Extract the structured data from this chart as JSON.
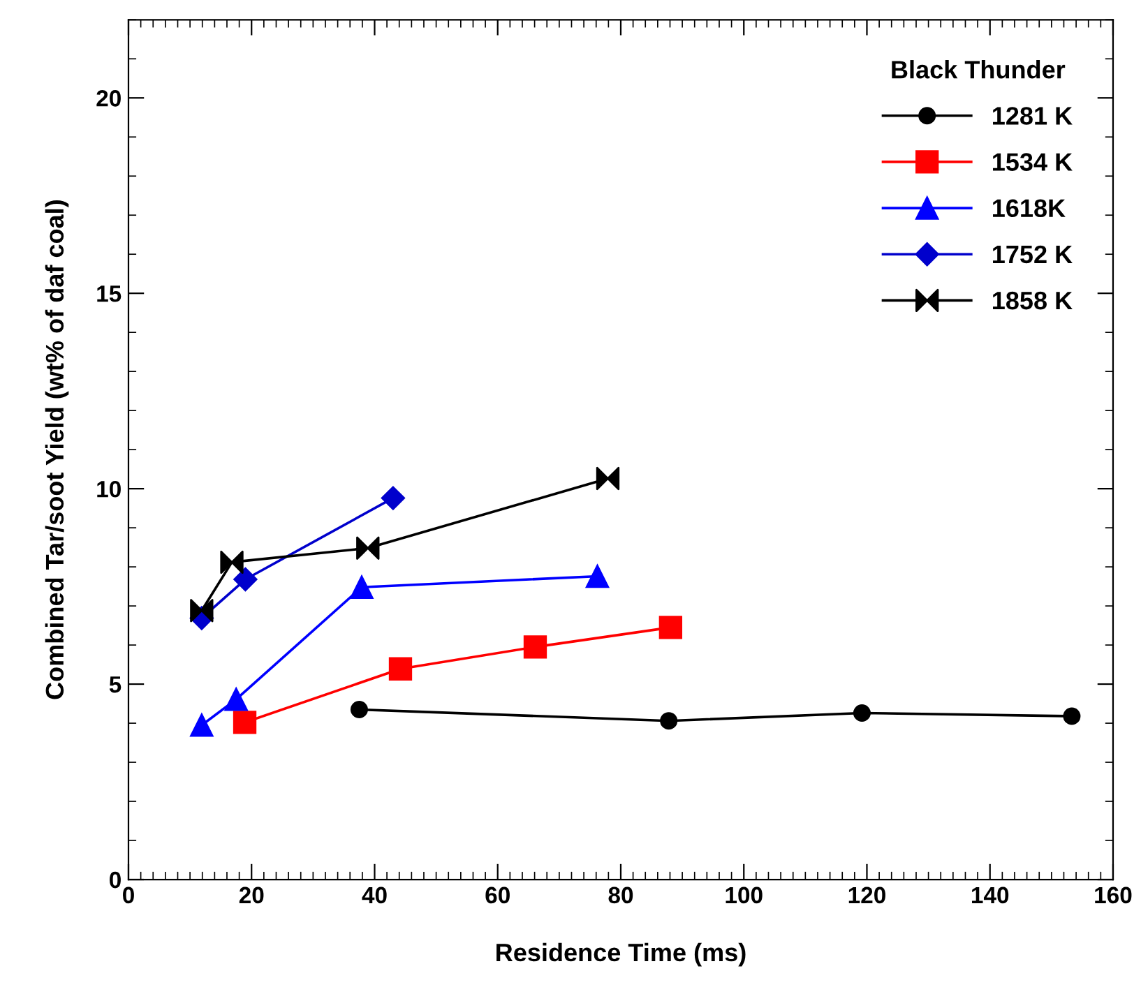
{
  "chart_data": {
    "type": "line",
    "xlabel": "Residence Time (ms)",
    "ylabel": "Combined Tar/soot Yield (wt% of daf coal)",
    "legend_title": "Black Thunder",
    "legend": "top right",
    "grid": false,
    "xlim": [
      0,
      160
    ],
    "ylim": [
      0,
      22
    ],
    "xticks": [
      0,
      20,
      40,
      60,
      80,
      100,
      120,
      140,
      160
    ],
    "yticks": [
      0,
      5,
      10,
      15,
      20
    ],
    "series": [
      {
        "name": "1281 K",
        "color": "#000000",
        "marker": "circle",
        "x": [
          37.5,
          87.8,
          119.2,
          153.3
        ],
        "values": [
          4.35,
          4.06,
          4.26,
          4.18
        ]
      },
      {
        "name": "1534 K",
        "color": "#ff0000",
        "marker": "square",
        "x": [
          18.9,
          44.2,
          66.1,
          88.1
        ],
        "values": [
          4.02,
          5.39,
          5.95,
          6.45
        ]
      },
      {
        "name": "1618K",
        "color": "#0000ff",
        "marker": "triangle",
        "x": [
          11.9,
          17.5,
          37.9,
          76.2
        ],
        "values": [
          3.95,
          4.61,
          7.48,
          7.76
        ]
      },
      {
        "name": "1752 K",
        "color": "#0000cc",
        "marker": "diamond",
        "x": [
          11.9,
          19.0,
          43.0
        ],
        "values": [
          6.69,
          7.68,
          9.76
        ]
      },
      {
        "name": "1858 K",
        "color": "#000000",
        "marker": "cross",
        "x": [
          11.9,
          16.8,
          38.9,
          77.9
        ],
        "values": [
          6.88,
          8.12,
          8.48,
          10.26
        ]
      }
    ]
  }
}
